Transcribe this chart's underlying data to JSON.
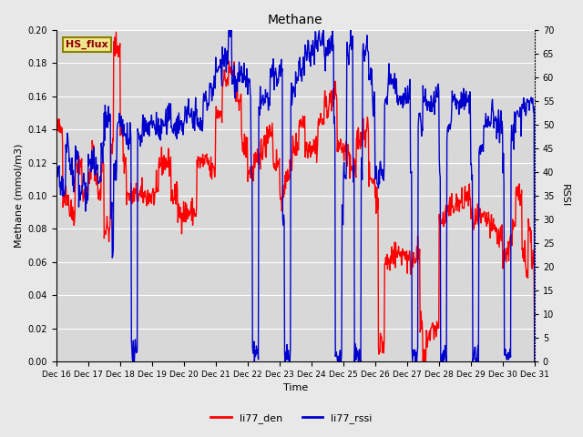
{
  "title": "Methane",
  "xlabel": "Time",
  "ylabel_left": "Methane (mmol/m3)",
  "ylabel_right": "RSSI",
  "legend_label1": "li77_den",
  "legend_label2": "li77_rssi",
  "legend_box_label": "HS_flux",
  "color1": "#ff0000",
  "color2": "#0000cd",
  "ylim_left": [
    0.0,
    0.2
  ],
  "ylim_right": [
    0,
    70
  ],
  "background_color": "#d8d8d8",
  "fig_facecolor": "#e8e8e8",
  "legend_box_bg": "#f0e68c",
  "legend_box_border": "#8b8000",
  "xtick_labels": [
    "Dec 16",
    "Dec 17",
    "Dec 18",
    "Dec 19",
    "Dec 20",
    "Dec 21",
    "Dec 22",
    "Dec 23",
    "Dec 24",
    "Dec 25",
    "Dec 26",
    "Dec 27",
    "Dec 28",
    "Dec 29",
    "Dec 30",
    "Dec 31"
  ],
  "yticks_left": [
    0.0,
    0.02,
    0.04,
    0.06,
    0.08,
    0.1,
    0.12,
    0.14,
    0.16,
    0.18,
    0.2
  ],
  "yticks_right": [
    0,
    5,
    10,
    15,
    20,
    25,
    30,
    35,
    40,
    45,
    50,
    55,
    60,
    65,
    70
  ]
}
